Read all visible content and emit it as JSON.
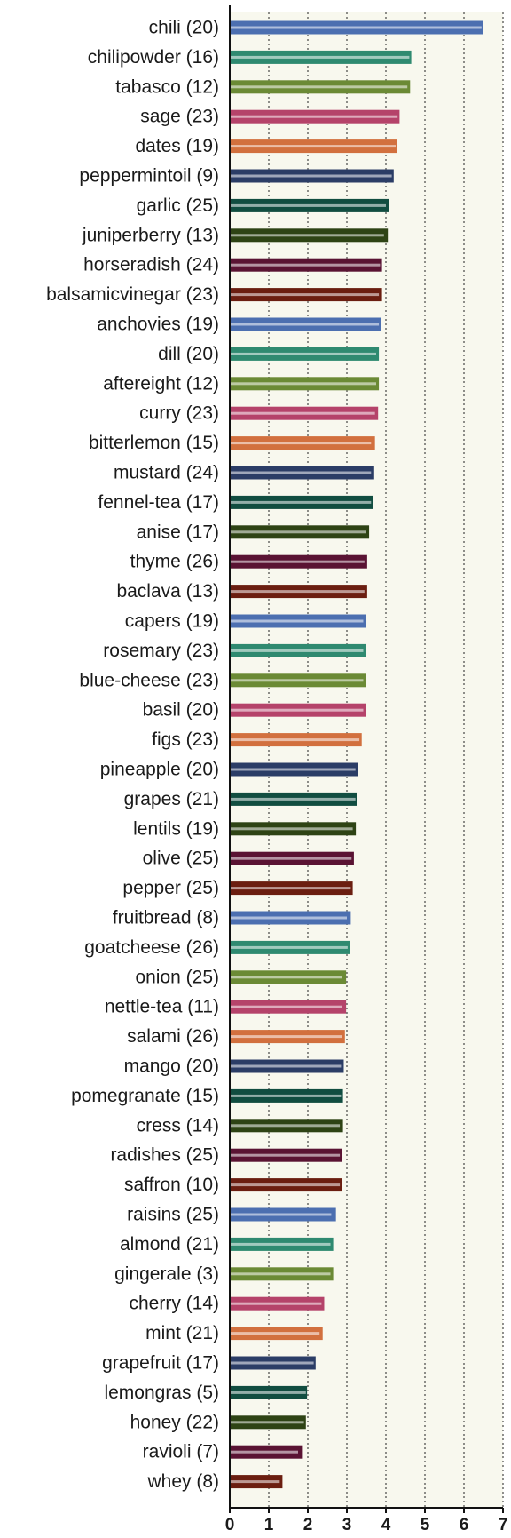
{
  "chart_data": {
    "type": "bar",
    "orientation": "horizontal",
    "title": "",
    "xlabel": "",
    "ylabel": "",
    "xlim": [
      0,
      7
    ],
    "xticks": [
      0,
      1,
      2,
      3,
      4,
      5,
      6,
      7
    ],
    "grid": "vertical-dotted",
    "plot_background": "#f8f8ee",
    "palette": [
      "#4c6fb0",
      "#2f8a70",
      "#6b8a35",
      "#b5436a",
      "#d2703e",
      "#2b3d66",
      "#114d40",
      "#2e4314",
      "#5a1333",
      "#6b1e10"
    ],
    "categories": [
      "chili (20)",
      "chilipowder (16)",
      "tabasco (12)",
      "sage (23)",
      "dates (19)",
      "peppermintoil (9)",
      "garlic (25)",
      "juniperberry (13)",
      "horseradish (24)",
      "balsamicvinegar (23)",
      "anchovies (19)",
      "dill (20)",
      "aftereight (12)",
      "curry (23)",
      "bitterlemon (15)",
      "mustard (24)",
      "fennel-tea (17)",
      "anise (17)",
      "thyme (26)",
      "baclava (13)",
      "capers (19)",
      "rosemary (23)",
      "blue-cheese (23)",
      "basil (20)",
      "figs (23)",
      "pineapple (20)",
      "grapes (21)",
      "lentils (19)",
      "olive (25)",
      "pepper (25)",
      "fruitbread (8)",
      "goatcheese (26)",
      "onion (25)",
      "nettle-tea (11)",
      "salami (26)",
      "mango (20)",
      "pomegranate (15)",
      "cress (14)",
      "radishes (25)",
      "saffron (10)",
      "raisins (25)",
      "almond (21)",
      "gingerale (3)",
      "cherry (14)",
      "mint (21)",
      "grapefruit (17)",
      "lemongras (5)",
      "honey (22)",
      "ravioli (7)",
      "whey (8)"
    ],
    "values": [
      6.5,
      4.65,
      4.62,
      4.35,
      4.28,
      4.2,
      4.08,
      4.05,
      3.9,
      3.9,
      3.88,
      3.82,
      3.82,
      3.8,
      3.72,
      3.7,
      3.68,
      3.57,
      3.52,
      3.52,
      3.5,
      3.5,
      3.5,
      3.48,
      3.38,
      3.28,
      3.25,
      3.23,
      3.18,
      3.15,
      3.1,
      3.08,
      2.98,
      2.98,
      2.95,
      2.92,
      2.9,
      2.9,
      2.88,
      2.88,
      2.72,
      2.65,
      2.65,
      2.42,
      2.38,
      2.2,
      1.98,
      1.95,
      1.85,
      1.35
    ],
    "inner_values": [
      6.45,
      4.6,
      4.55,
      4.3,
      4.25,
      4.15,
      4.0,
      3.95,
      3.85,
      3.82,
      3.82,
      3.75,
      3.75,
      3.72,
      3.62,
      3.62,
      3.62,
      3.5,
      3.45,
      3.45,
      3.42,
      3.42,
      3.42,
      3.42,
      3.32,
      3.22,
      3.22,
      3.15,
      3.12,
      3.1,
      3.0,
      3.02,
      2.88,
      2.88,
      2.88,
      2.85,
      2.85,
      2.82,
      2.82,
      2.82,
      2.6,
      2.58,
      2.58,
      2.35,
      2.3,
      2.15,
      1.95,
      1.9,
      1.75,
      1.28
    ]
  }
}
